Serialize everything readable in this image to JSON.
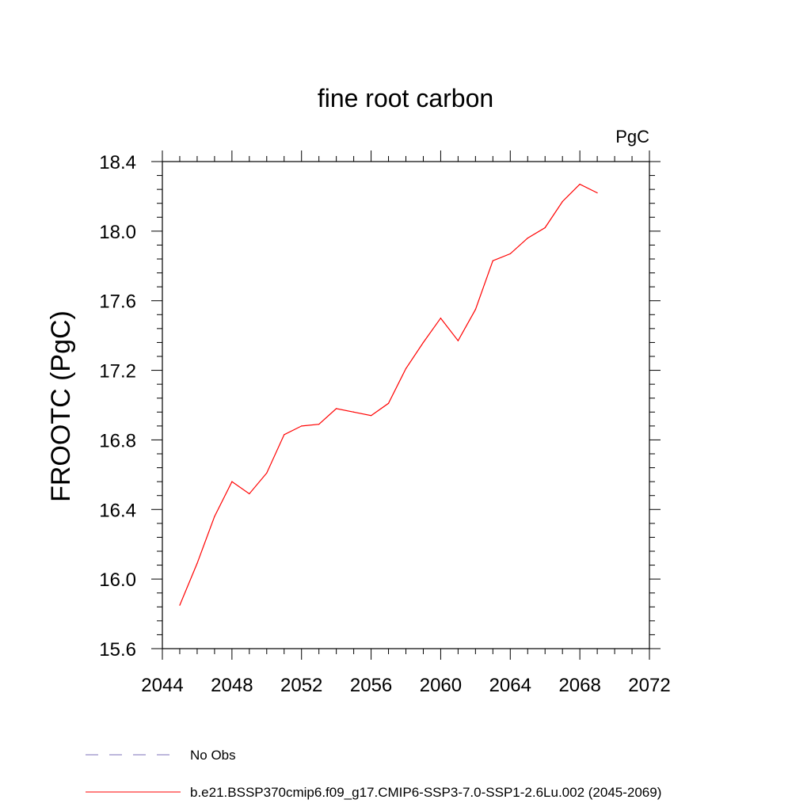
{
  "chart_data": {
    "type": "line",
    "title": "fine root carbon",
    "units_label": "PgC",
    "ylabel": "FROOTC  (PgC)",
    "xlabel": "",
    "xlim": [
      2044,
      2072
    ],
    "ylim": [
      15.6,
      18.4
    ],
    "x_ticks": [
      "2044",
      "2048",
      "2052",
      "2056",
      "2060",
      "2064",
      "2068",
      "2072"
    ],
    "y_ticks": [
      "15.6",
      "16.0",
      "16.4",
      "16.8",
      "17.2",
      "17.6",
      "18.0",
      "18.4"
    ],
    "grid": false,
    "legend_position": "bottom",
    "series": [
      {
        "name": "b.e21.BSSP370cmip6.f09_g17.CMIP6-SSP3-7.0-SSP1-2.6Lu.002 (2045-2069)",
        "color": "#ff0000",
        "style": "solid",
        "x": [
          2045,
          2046,
          2047,
          2048,
          2049,
          2050,
          2051,
          2052,
          2053,
          2054,
          2055,
          2056,
          2057,
          2058,
          2059,
          2060,
          2061,
          2062,
          2063,
          2064,
          2065,
          2066,
          2067,
          2068,
          2069
        ],
        "y": [
          15.85,
          16.09,
          16.36,
          16.56,
          16.49,
          16.61,
          16.83,
          16.88,
          16.89,
          16.98,
          16.96,
          16.94,
          17.01,
          17.21,
          17.36,
          17.5,
          17.37,
          17.55,
          17.83,
          17.87,
          17.96,
          18.02,
          18.17,
          18.27,
          18.22
        ]
      }
    ],
    "legend": [
      {
        "label": "No Obs",
        "color": "#7b6fb8",
        "style": "dashed"
      },
      {
        "label": "b.e21.BSSP370cmip6.f09_g17.CMIP6-SSP3-7.0-SSP1-2.6Lu.002 (2045-2069)",
        "color": "#ff0000",
        "style": "solid"
      }
    ]
  }
}
